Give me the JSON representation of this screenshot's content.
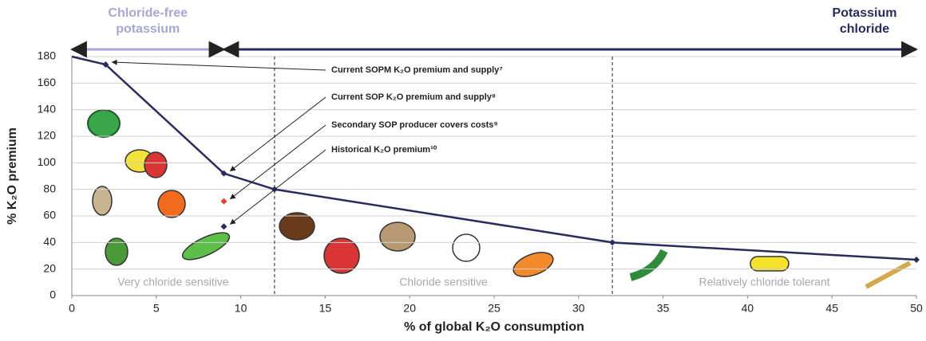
{
  "chart_data": {
    "type": "line",
    "x_label": "% of global K₂O consumption",
    "y_label": "% K₂O premium",
    "xlim": [
      0,
      50
    ],
    "xticks": [
      0,
      5,
      10,
      15,
      20,
      25,
      30,
      35,
      40,
      45,
      50
    ],
    "ylim": [
      0,
      180
    ],
    "yticks": [
      0,
      20,
      40,
      60,
      80,
      100,
      120,
      140,
      160,
      180
    ],
    "grid": true,
    "series": [
      {
        "color": "#2b2a5e",
        "x": [
          0,
          2,
          9,
          12,
          32,
          50
        ],
        "values": [
          180,
          174,
          92,
          80,
          40,
          27
        ]
      }
    ],
    "points": [
      {
        "x": 9,
        "y": 71,
        "color": "#e8412c"
      },
      {
        "x": 9,
        "y": 52,
        "color": "#2b2a5e"
      }
    ],
    "annotations": [
      "Current SOPM K₂O premium and supply⁷",
      "Current SOP K₂O premium and supply⁸",
      "Secondary SOP producer covers costs⁹",
      "Historical K₂O premium¹⁰"
    ],
    "dividers": [
      12,
      32
    ],
    "regions": [
      "Very chloride sensitive",
      "Chloride sensitive",
      "Relatively chloride tolerant"
    ],
    "spans": [
      {
        "label": [
          "Chloride-free",
          "potassium"
        ],
        "from": 0,
        "to": 9,
        "color": "#a9a6d6"
      },
      {
        "label": [
          "Potassium",
          "chloride"
        ],
        "from": 9,
        "to": 50,
        "color": "#2b2a5e"
      }
    ]
  }
}
